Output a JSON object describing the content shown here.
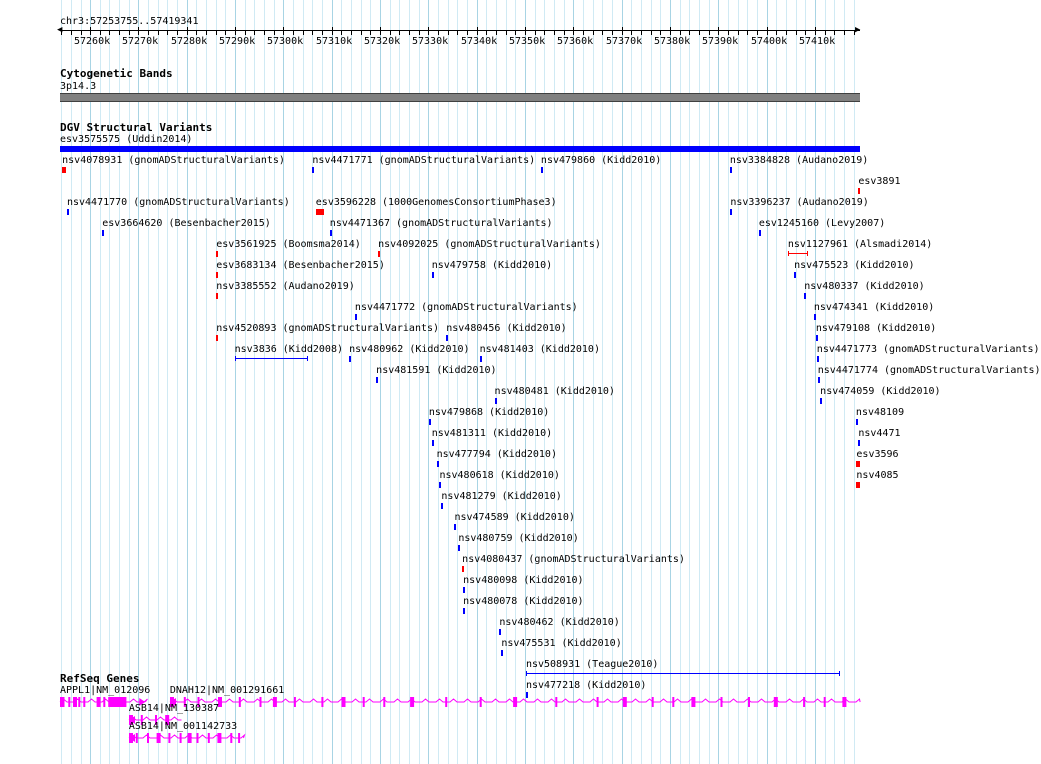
{
  "browser": {
    "position": "chr3:57253755..57419341",
    "ruler_ticks": [
      "57260k",
      "57270k",
      "57280k",
      "57290k",
      "57300k",
      "57310k",
      "57320k",
      "57330k",
      "57340k",
      "57350k",
      "57360k",
      "57370k",
      "57380k",
      "57390k",
      "57400k",
      "57410k"
    ]
  },
  "colors": {
    "gain": "#0000ff",
    "loss": "#ff0000",
    "gene": "#ff00ff",
    "grid_minor": "#d0eaf4",
    "grid_major": "#a8d4e4",
    "band_gray": "#808080"
  },
  "cytoband_track": {
    "title": "Cytogenetic Bands",
    "band": "3p14.3"
  },
  "dgv_track": {
    "title": "DGV Structural Variants",
    "features": [
      {
        "label": "esv3575575 (Uddin2014)",
        "type": "gain",
        "start": 57253755,
        "end": 57419341
      },
      {
        "label": "nsv4078931 (gnomADStructuralVariants)",
        "type": "loss",
        "start": 57254200,
        "end": 57254900
      },
      {
        "label": "nsv4471771 (gnomADStructuralVariants)",
        "type": "gain",
        "start": 57306000,
        "end": 57306400
      },
      {
        "label": "nsv479860 (Kidd2010)",
        "type": "gain",
        "start": 57353300,
        "end": 57353700
      },
      {
        "label": "nsv3384828 (Audano2019)",
        "type": "gain",
        "start": 57392400,
        "end": 57392800
      },
      {
        "label": "esv3891",
        "type": "loss",
        "start": 57419000,
        "end": 57419341
      },
      {
        "label": "nsv4471770 (gnomADStructuralVariants)",
        "type": "gain",
        "start": 57255200,
        "end": 57255600
      },
      {
        "label": "esv3596228 (1000GenomesConsortiumPhase3)",
        "type": "loss",
        "start": 57306700,
        "end": 57308300
      },
      {
        "label": "nsv3396237 (Audano2019)",
        "type": "gain",
        "start": 57392500,
        "end": 57392900
      },
      {
        "label": "esv3664620 (Besenbacher2015)",
        "type": "gain",
        "start": 57262500,
        "end": 57262900
      },
      {
        "label": "nsv4471367 (gnomADStructuralVariants)",
        "type": "gain",
        "start": 57309600,
        "end": 57310000
      },
      {
        "label": "esv1245160 (Levy2007)",
        "type": "gain",
        "start": 57398400,
        "end": 57398800
      },
      {
        "label": "esv3561925 (Boomsma2014)",
        "type": "loss",
        "start": 57286100,
        "end": 57286500
      },
      {
        "label": "nsv4092025 (gnomADStructuralVariants)",
        "type": "loss",
        "start": 57319600,
        "end": 57320000
      },
      {
        "label": "nsv1127961 (Alsmadi2014)",
        "type": "loss",
        "start": 57404400,
        "end": 57408600
      },
      {
        "label": "esv3683134 (Besenbacher2015)",
        "type": "loss",
        "start": 57286100,
        "end": 57286500
      },
      {
        "label": "nsv479758 (Kidd2010)",
        "type": "gain",
        "start": 57330700,
        "end": 57331100
      },
      {
        "label": "nsv475523 (Kidd2010)",
        "type": "gain",
        "start": 57405700,
        "end": 57406100
      },
      {
        "label": "nsv3385552 (Audano2019)",
        "type": "loss",
        "start": 57286100,
        "end": 57286500
      },
      {
        "label": "nsv4471772 (gnomADStructuralVariants)",
        "type": "gain",
        "start": 57314800,
        "end": 57315200
      },
      {
        "label": "nsv480337 (Kidd2010)",
        "type": "gain",
        "start": 57407800,
        "end": 57408200
      },
      {
        "label": "nsv4520893 (gnomADStructuralVariants)",
        "type": "loss",
        "start": 57286100,
        "end": 57286500
      },
      {
        "label": "nsv480456 (Kidd2010)",
        "type": "gain",
        "start": 57333700,
        "end": 57334100
      },
      {
        "label": "nsv474341 (Kidd2010)",
        "type": "gain",
        "start": 57409800,
        "end": 57410200
      },
      {
        "label": "nsv3836 (Kidd2008)",
        "type": "gain",
        "start": 57289900,
        "end": 57305100
      },
      {
        "label": "nsv480962 (Kidd2010)",
        "type": "gain",
        "start": 57313600,
        "end": 57314000
      },
      {
        "label": "nsv481403 (Kidd2010)",
        "type": "gain",
        "start": 57340600,
        "end": 57341000
      },
      {
        "label": "nsv479108 (Kidd2010)",
        "type": "gain",
        "start": 57410200,
        "end": 57410600
      },
      {
        "label": "nsv481591 (Kidd2010)",
        "type": "gain",
        "start": 57319200,
        "end": 57319600
      },
      {
        "label": "nsv480481 (Kidd2010)",
        "type": "gain",
        "start": 57343700,
        "end": 57344100
      },
      {
        "label": "nsv4471773 (gnomADStructuralVariants)",
        "type": "gain",
        "start": 57410400,
        "end": 57410800
      },
      {
        "label": "nsv479868 (Kidd2010)",
        "type": "gain",
        "start": 57330100,
        "end": 57330500
      },
      {
        "label": "nsv4471774 (gnomADStructuralVariants)",
        "type": "gain",
        "start": 57410600,
        "end": 57411000
      },
      {
        "label": "nsv481311 (Kidd2010)",
        "type": "gain",
        "start": 57330700,
        "end": 57331100
      },
      {
        "label": "nsv474059 (Kidd2010)",
        "type": "gain",
        "start": 57411100,
        "end": 57411500
      },
      {
        "label": "nsv477794 (Kidd2010)",
        "type": "gain",
        "start": 57331700,
        "end": 57332100
      },
      {
        "label": "nsv48109",
        "type": "gain",
        "start": 57418500,
        "end": 57418900
      },
      {
        "label": "nsv480618 (Kidd2010)",
        "type": "gain",
        "start": 57332300,
        "end": 57332700
      },
      {
        "label": "nsv4471",
        "type": "gain",
        "start": 57419000,
        "end": 57419341
      },
      {
        "label": "nsv481279 (Kidd2010)",
        "type": "gain",
        "start": 57332700,
        "end": 57333100
      },
      {
        "label": "esv3596",
        "type": "loss",
        "start": 57418600,
        "end": 57419341
      },
      {
        "label": "nsv474589 (Kidd2010)",
        "type": "gain",
        "start": 57335400,
        "end": 57335800
      },
      {
        "label": "nsv4085",
        "type": "loss",
        "start": 57418600,
        "end": 57419341
      },
      {
        "label": "nsv480759 (Kidd2010)",
        "type": "gain",
        "start": 57336200,
        "end": 57336600
      },
      {
        "label": "nsv4080437 (gnomADStructuralVariants)",
        "type": "loss",
        "start": 57337000,
        "end": 57337400
      },
      {
        "label": "nsv480098 (Kidd2010)",
        "type": "gain",
        "start": 57337200,
        "end": 57337600
      },
      {
        "label": "nsv480078 (Kidd2010)",
        "type": "gain",
        "start": 57337200,
        "end": 57337600
      },
      {
        "label": "nsv480462 (Kidd2010)",
        "type": "gain",
        "start": 57344700,
        "end": 57345100
      },
      {
        "label": "nsv475531 (Kidd2010)",
        "type": "gain",
        "start": 57345100,
        "end": 57345500
      },
      {
        "label": "nsv508931 (Teague2010)",
        "type": "gain",
        "start": 57350200,
        "end": 57415100
      },
      {
        "label": "nsv477218 (Kidd2010)",
        "type": "gain",
        "start": 57350200,
        "end": 57350600
      }
    ]
  },
  "refseq_track": {
    "title": "RefSeq Genes",
    "genes": [
      {
        "label": "APPL1|NM_012096",
        "start": 57253755,
        "end": 57271400,
        "strand": "+"
      },
      {
        "label": "DNAH12|NM_001291661",
        "start": 57276500,
        "end": 57419341,
        "strand": "-"
      },
      {
        "label": "ASB14|NM_130387",
        "start": 57268000,
        "end": 57278200,
        "strand": "-"
      },
      {
        "label": "ASB14|NM_001142733",
        "start": 57268000,
        "end": 57291700,
        "strand": "-"
      }
    ]
  }
}
